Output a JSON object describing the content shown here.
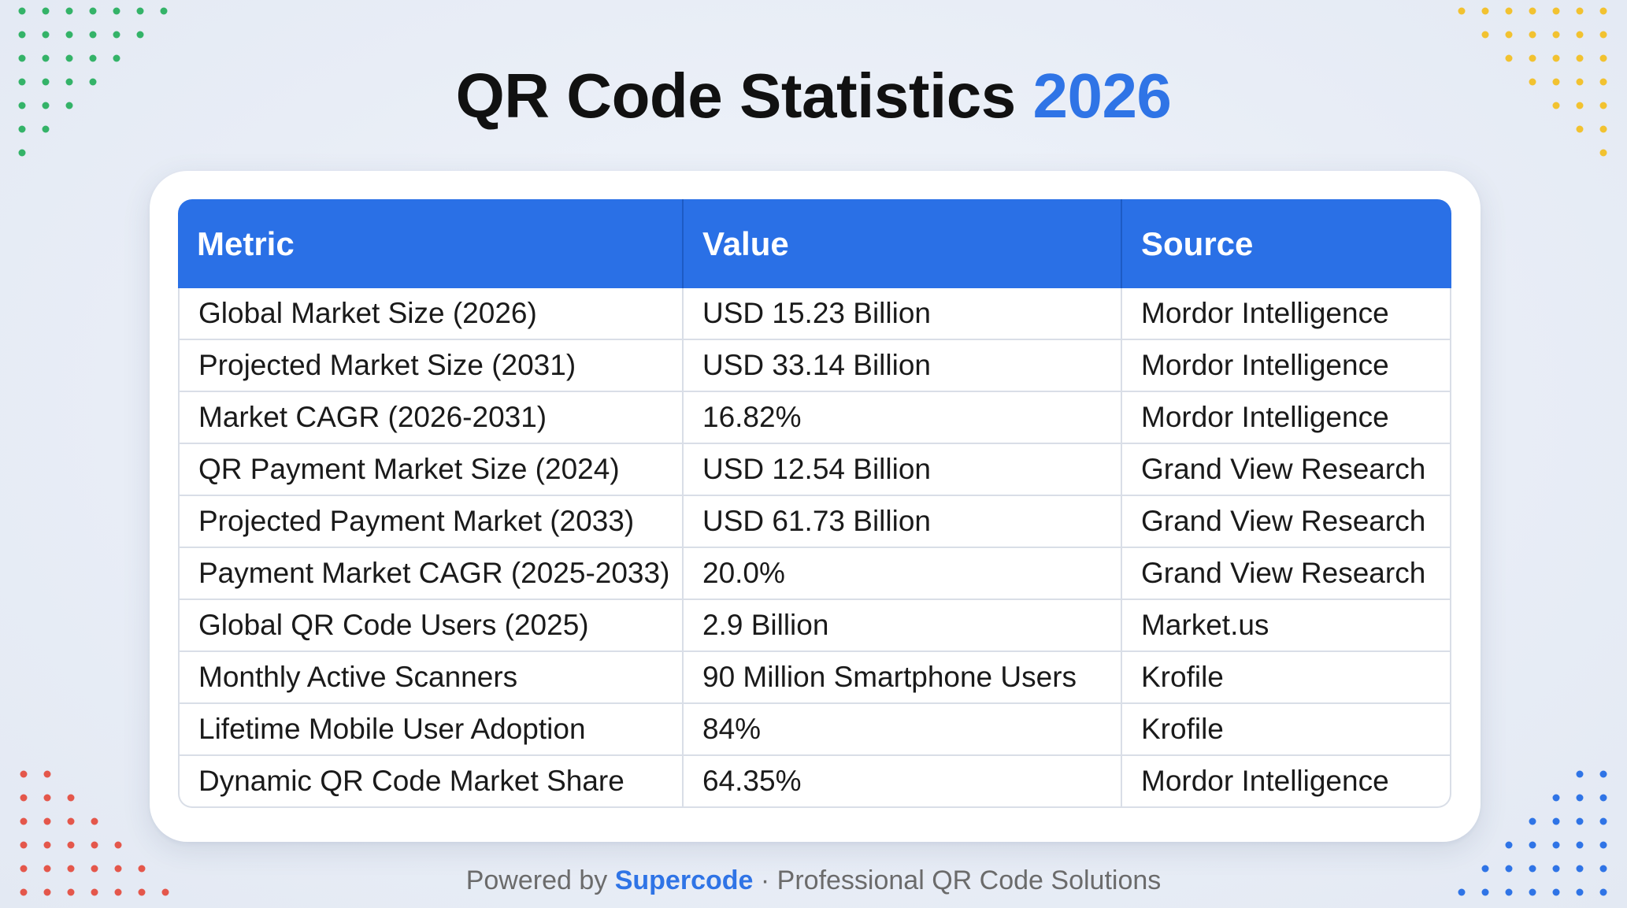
{
  "title": {
    "prefix": "QR Code Statistics",
    "year": "2026"
  },
  "colors": {
    "accent": "#2f74e6",
    "header_bg": "#2a70e6",
    "dots_green": "#34b368",
    "dots_yellow": "#f2c230",
    "dots_red": "#e4574b",
    "dots_blue": "#2f74e6"
  },
  "chart_data": {
    "type": "table",
    "title": "QR Code Statistics 2026",
    "columns": [
      "Metric",
      "Value",
      "Source"
    ],
    "rows": [
      [
        "Global Market Size (2026)",
        "USD 15.23 Billion",
        "Mordor Intelligence"
      ],
      [
        "Projected Market Size (2031)",
        "USD 33.14 Billion",
        "Mordor Intelligence"
      ],
      [
        "Market CAGR (2026-2031)",
        "16.82%",
        "Mordor Intelligence"
      ],
      [
        "QR Payment Market Size (2024)",
        "USD 12.54 Billion",
        "Grand View Research"
      ],
      [
        "Projected Payment Market (2033)",
        "USD 61.73 Billion",
        "Grand View Research"
      ],
      [
        "Payment Market CAGR (2025-2033)",
        "20.0%",
        "Grand View Research"
      ],
      [
        "Global QR Code Users (2025)",
        "2.9 Billion",
        "Market.us"
      ],
      [
        "Monthly Active Scanners",
        "90 Million Smartphone Users",
        "Krofile"
      ],
      [
        "Lifetime Mobile User Adoption",
        "84%",
        "Krofile"
      ],
      [
        "Dynamic QR Code Market Share",
        "64.35%",
        "Mordor Intelligence"
      ]
    ]
  },
  "footer": {
    "prefix": "Powered by",
    "brand": "Supercode",
    "separator": "·",
    "tagline": "Professional QR Code Solutions"
  }
}
